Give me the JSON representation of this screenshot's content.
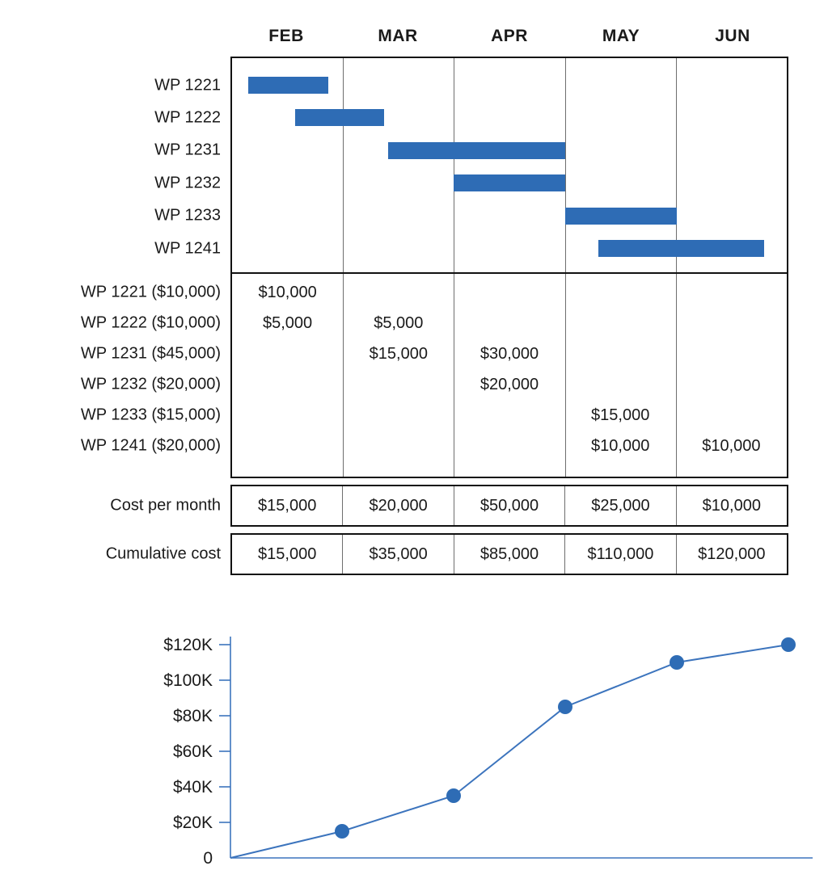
{
  "colors": {
    "bar": "#2e6cb5",
    "line": "#3c74bd",
    "dot": "#2e6cb5"
  },
  "chart_data": [
    {
      "type": "gantt",
      "months": [
        "FEB",
        "MAR",
        "APR",
        "MAY",
        "JUN"
      ],
      "rows": [
        {
          "label": "WP 1221",
          "start_month": 0.16,
          "end_month": 0.88
        },
        {
          "label": "WP 1222",
          "start_month": 0.58,
          "end_month": 1.38
        },
        {
          "label": "WP 1231",
          "start_month": 1.41,
          "end_month": 3.0
        },
        {
          "label": "WP 1232",
          "start_month": 2.0,
          "end_month": 3.0
        },
        {
          "label": "WP 1233",
          "start_month": 3.0,
          "end_month": 4.0
        },
        {
          "label": "WP 1241",
          "start_month": 3.3,
          "end_month": 4.78
        }
      ]
    },
    {
      "type": "table",
      "columns": [
        "FEB",
        "MAR",
        "APR",
        "MAY",
        "JUN"
      ],
      "rows": [
        {
          "label": "WP 1221 ($10,000)",
          "values": [
            "$10,000",
            "",
            "",
            "",
            ""
          ]
        },
        {
          "label": "WP 1222 ($10,000)",
          "values": [
            "$5,000",
            "$5,000",
            "",
            "",
            ""
          ]
        },
        {
          "label": "WP 1231 ($45,000)",
          "values": [
            "",
            "$15,000",
            "$30,000",
            "",
            ""
          ]
        },
        {
          "label": "WP 1232 ($20,000)",
          "values": [
            "",
            "",
            "$20,000",
            "",
            ""
          ]
        },
        {
          "label": "WP 1233 ($15,000)",
          "values": [
            "",
            "",
            "",
            "$15,000",
            ""
          ]
        },
        {
          "label": "WP 1241 ($20,000)",
          "values": [
            "",
            "",
            "",
            "$10,000",
            "$10,000"
          ]
        }
      ],
      "cost_per_month": {
        "label": "Cost per month",
        "values": [
          "$15,000",
          "$20,000",
          "$50,000",
          "$25,000",
          "$10,000"
        ]
      },
      "cumulative_cost": {
        "label": "Cumulative cost",
        "values": [
          "$15,000",
          "$35,000",
          "$85,000",
          "$110,000",
          "$120,000"
        ]
      }
    },
    {
      "type": "line",
      "x": [
        "FEB",
        "MAR",
        "APR",
        "MAY",
        "JUN"
      ],
      "values": [
        15000,
        35000,
        85000,
        110000,
        120000
      ],
      "start_at_origin": true,
      "ylim": [
        0,
        120000
      ],
      "ytick_step": 20000,
      "yticks": [
        "0",
        "$20K",
        "$40K",
        "$60K",
        "$80K",
        "$100K",
        "$120K"
      ],
      "legend": "none",
      "grid": false
    }
  ]
}
